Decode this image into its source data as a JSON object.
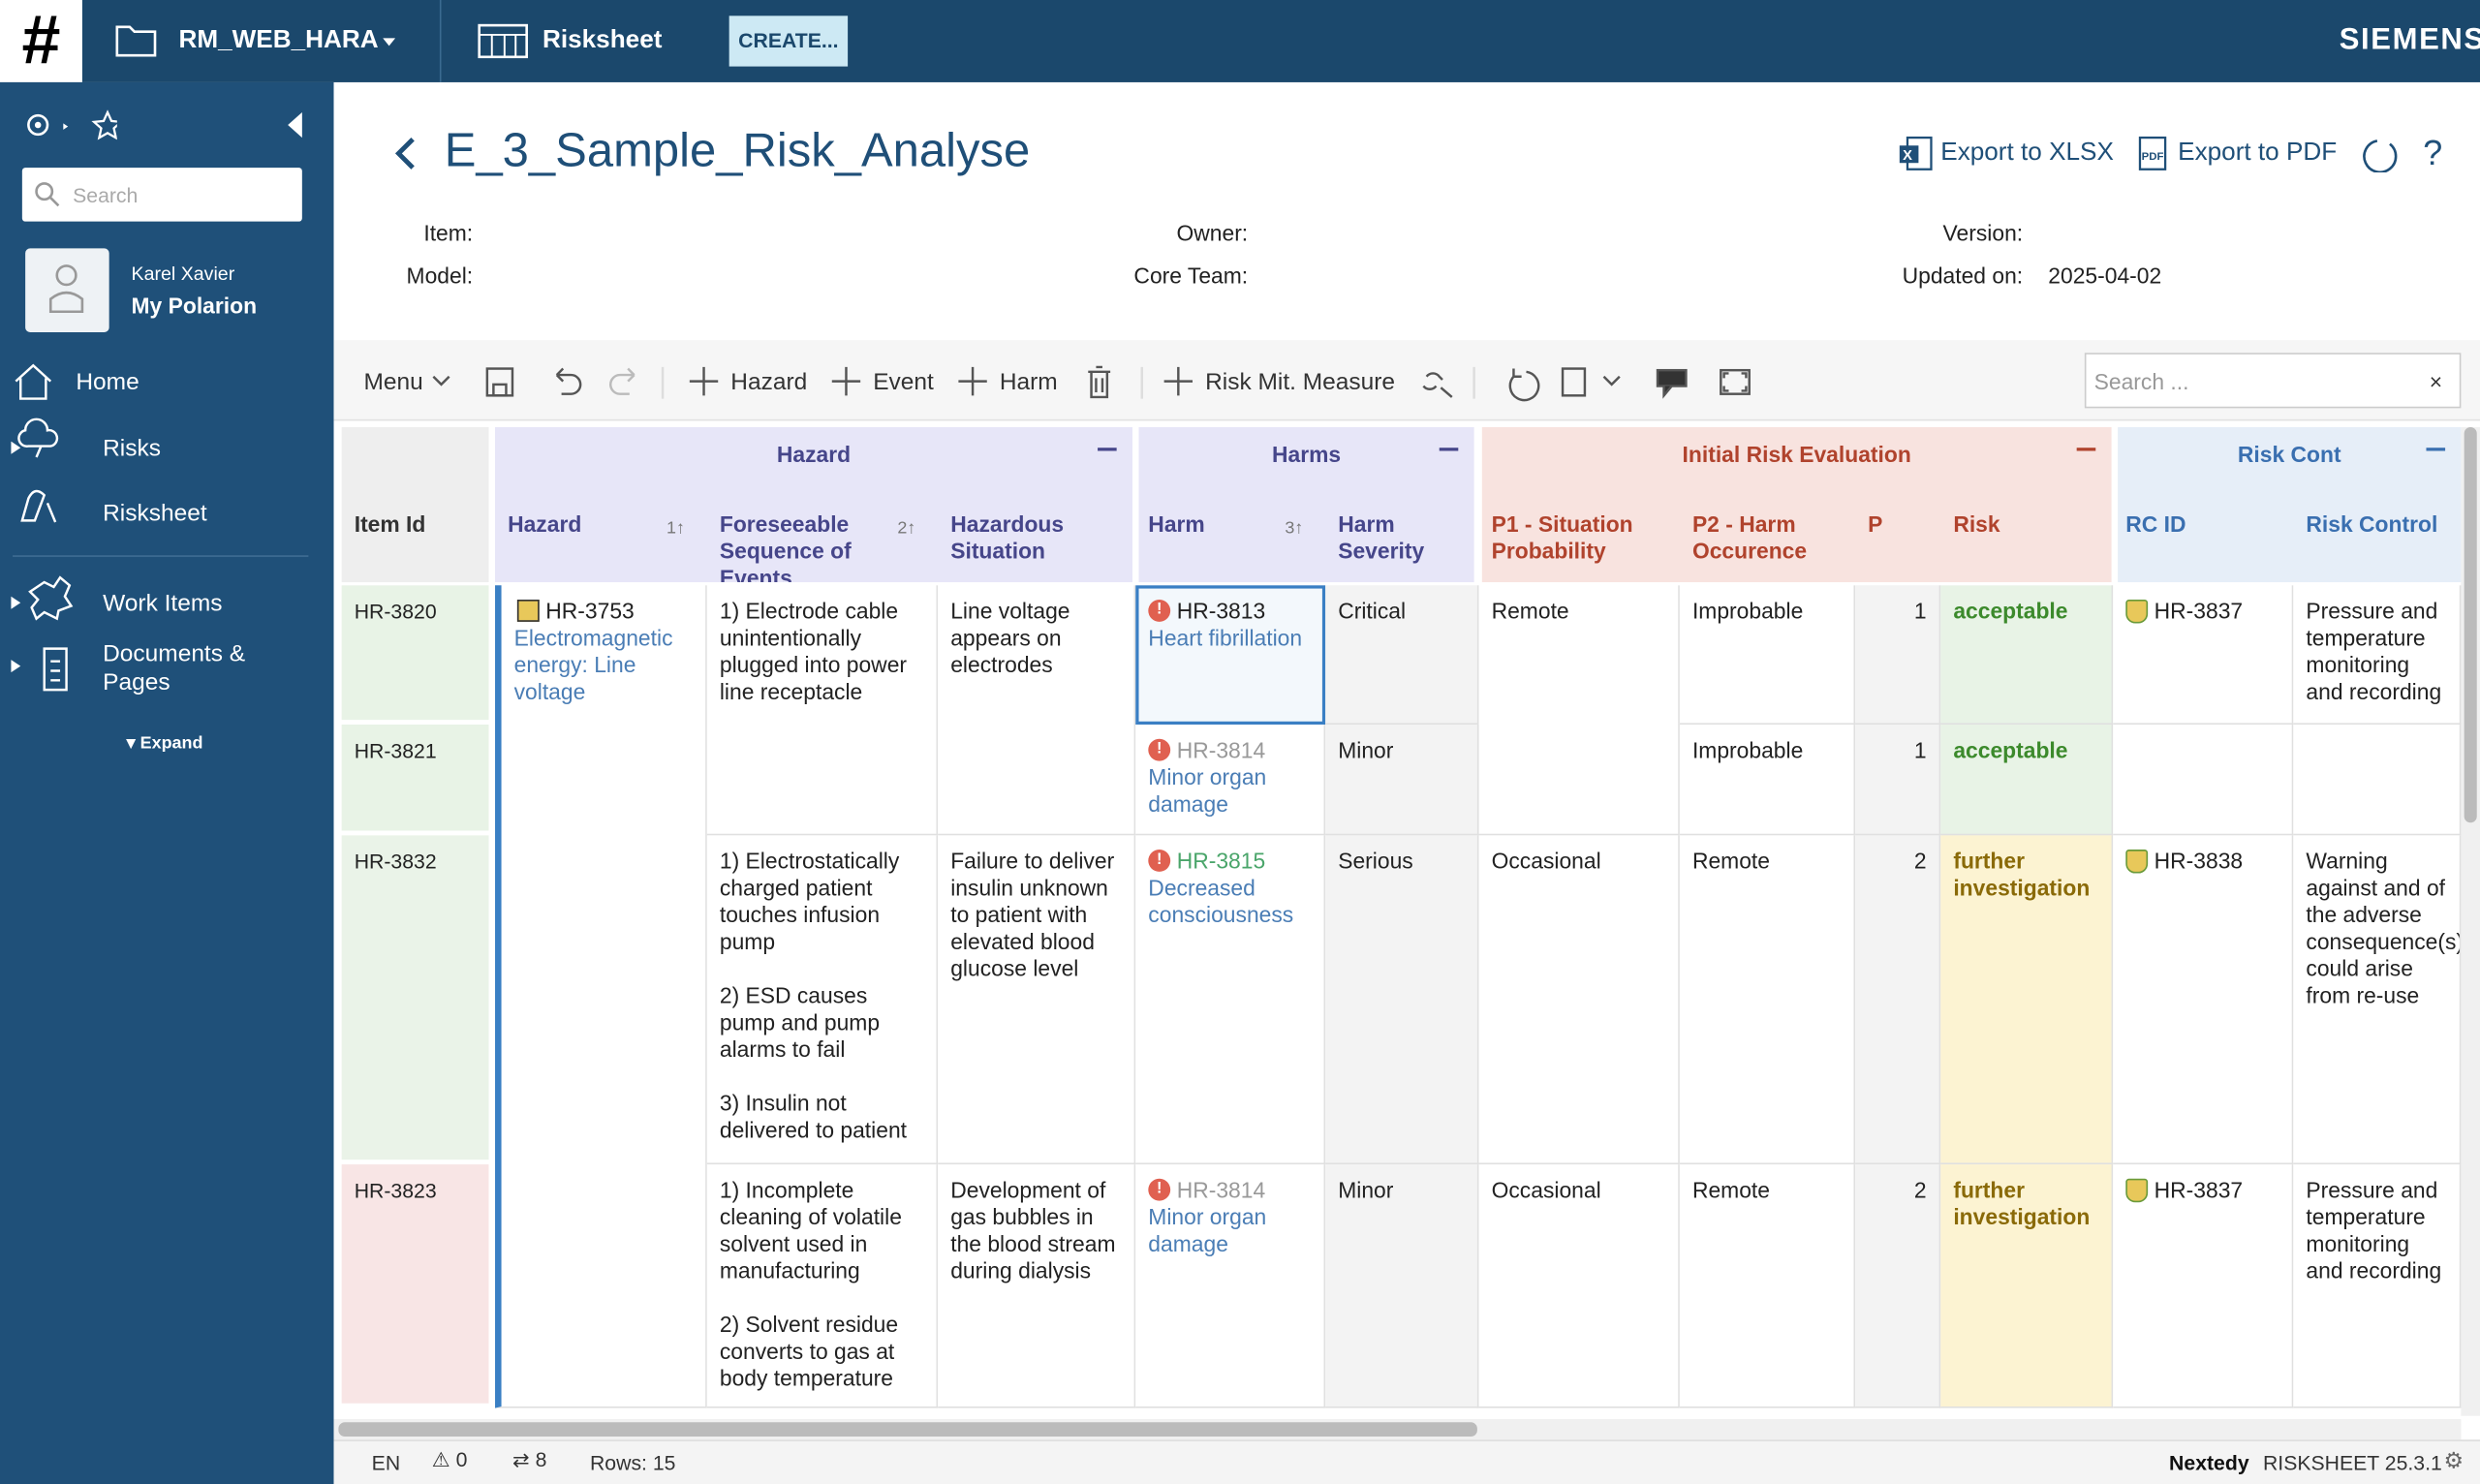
{
  "topbar": {
    "logo": "#",
    "project": "RM_WEB_HARA",
    "app": "Risksheet",
    "create": "CREATE...",
    "brand": "SIEMENS"
  },
  "sidebar": {
    "search": "Search",
    "user_name": "Karel Xavier",
    "user_link": "My Polarion",
    "nav": [
      "Home",
      "Risks",
      "Risksheet",
      "Work Items",
      "Documents & Pages"
    ],
    "expand": "Expand"
  },
  "header": {
    "title": "E_3_Sample_Risk_Analyse",
    "export_xlsx": "Export to XLSX",
    "export_pdf": "Export to PDF",
    "fields": [
      "Item:",
      "Model:",
      "Owner:",
      "Core Team:",
      "Version:"
    ],
    "updated": {
      "label": "Updated on:",
      "value": "2025-04-02"
    }
  },
  "toolbar": {
    "menu": "Menu",
    "buttons": [
      "Hazard",
      "Event",
      "Harm",
      "Risk Mit. Measure"
    ],
    "search_placeholder": "Search ..."
  },
  "table": {
    "groups": [
      "Hazard",
      "Harms",
      "Initial Risk Evaluation",
      "Risk Cont"
    ],
    "columns": [
      {
        "label": "Item Id"
      },
      {
        "label": "Hazard",
        "sort": "1↑"
      },
      {
        "label": "Foreseeable Sequence of Events",
        "sort": "2↑"
      },
      {
        "label": "Hazardous Situation"
      },
      {
        "label": "Harm",
        "sort": "3↑"
      },
      {
        "label": "Harm Severity"
      },
      {
        "label": "P1 - Situation Probability"
      },
      {
        "label": "P2 - Harm Occurence"
      },
      {
        "label": "P"
      },
      {
        "label": "Risk"
      },
      {
        "label": "RC ID"
      },
      {
        "label": "Risk Control"
      }
    ],
    "rows": [
      {
        "id": "HR-3820",
        "hazard_id": "HR-3753",
        "hazard_title": "Electromagnetic energy: Line voltage",
        "sequence": "1) Electrode cable unintentionally plugged into power line receptacle",
        "situation": "Line voltage appears on electrodes",
        "harm_id": "HR-3813",
        "harm_title": "Heart fibrillation",
        "severity": "Critical",
        "p1": "Remote",
        "p2": "Improbable",
        "p": 1,
        "risk": "acceptable",
        "rc_id": "HR-3837",
        "rc": "Pressure and temperature monitoring and recording"
      },
      {
        "id": "HR-3821",
        "harm_id": "HR-3814",
        "harm_title": "Minor organ damage",
        "severity": "Minor",
        "p2": "Improbable",
        "p": 1,
        "risk": "acceptable"
      },
      {
        "id": "HR-3832",
        "sequence": "1) Electrostatically charged patient touches infusion pump\n\n2) ESD causes pump and pump alarms to fail\n\n3) Insulin not delivered to patient",
        "situation": "Failure to deliver insulin unknown to patient with elevated blood glucose level",
        "harm_id": "HR-3815",
        "harm_title": "Decreased consciousness",
        "severity": "Serious",
        "p1": "Occasional",
        "p2": "Remote",
        "p": 2,
        "risk": "further investigation",
        "rc_id": "HR-3838",
        "rc": "Warning against and of the adverse consequence(s) could arise from re-use"
      },
      {
        "id": "HR-3823",
        "sequence": "1) Incomplete cleaning of volatile solvent used in manufacturing\n\n2) Solvent residue converts to gas at body temperature",
        "situation": "Development of gas bubbles in the blood stream during dialysis",
        "harm_id": "HR-3814",
        "harm_title": "Minor organ damage",
        "severity": "Minor",
        "p1": "Occasional",
        "p2": "Remote",
        "p": 2,
        "risk": "further investigation",
        "rc_id": "HR-3837",
        "rc": "Pressure and temperature monitoring and recording"
      }
    ]
  },
  "status": {
    "lang": "EN",
    "warnings": 0,
    "links": 8,
    "rows": "Rows: 15",
    "vendor": "Nextedy",
    "product": "RISKSHEET 25.3.1"
  }
}
